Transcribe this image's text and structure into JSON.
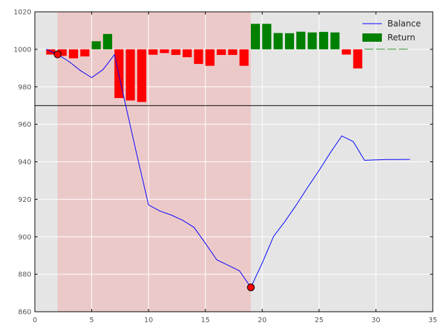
{
  "chart_data": {
    "type": "bar+line",
    "title": "",
    "xlabel": "",
    "ylabel": "",
    "xlim": [
      0,
      35
    ],
    "ylim": [
      860,
      1020
    ],
    "xticks": [
      0,
      5,
      10,
      15,
      20,
      25,
      30,
      35
    ],
    "yticks": [
      860,
      880,
      900,
      920,
      940,
      960,
      980,
      1000,
      1020
    ],
    "grid": true,
    "legend_position": "top-right",
    "background_color": "#e5e5e5",
    "drawdown_span": {
      "x_start": 2,
      "x_end": 19,
      "color": "#f4a6a6"
    },
    "reference_line": {
      "y": 970,
      "color": "#000000"
    },
    "line_series": {
      "name": "Balance",
      "color": "#0000ff",
      "x": [
        1,
        2,
        3,
        4,
        5,
        6,
        7,
        8,
        9,
        10,
        11,
        12,
        13,
        14,
        15,
        16,
        17,
        18,
        19,
        20,
        21,
        22,
        23,
        24,
        25,
        26,
        27,
        28,
        29,
        30,
        31,
        32,
        33
      ],
      "values": [
        1000,
        997.3,
        993.5,
        988.7,
        984.9,
        989.2,
        997.1,
        969.8,
        943.0,
        917.0,
        913.7,
        911.6,
        908.8,
        905.0,
        896.5,
        887.7,
        884.8,
        881.8,
        873.0,
        886.0,
        900.2,
        908.2,
        917.0,
        926.4,
        935.4,
        944.9,
        953.8,
        950.8,
        940.8,
        941.0,
        941.2,
        941.2,
        941.3
      ]
    },
    "bar_series": {
      "name": "Return",
      "positive_color": "#008000",
      "negative_color": "#ff0000",
      "baseline": 1000,
      "x": [
        1,
        2,
        3,
        4,
        5,
        6,
        7,
        8,
        9,
        10,
        11,
        12,
        13,
        14,
        15,
        16,
        17,
        18,
        19,
        20,
        21,
        22,
        23,
        24,
        25,
        26,
        27,
        28,
        29,
        30,
        31,
        32
      ],
      "values": [
        -2.8,
        -3.5,
        -4.8,
        -3.8,
        4.3,
        8.2,
        -26.0,
        -27.3,
        -28.1,
        -2.9,
        -2.0,
        -3.0,
        -4.2,
        -7.8,
        -8.8,
        -3.0,
        -3.0,
        -8.8,
        13.6,
        13.6,
        8.7,
        8.6,
        9.4,
        9.0,
        9.3,
        9.0,
        -2.8,
        -10.2,
        0.2,
        0.2,
        0.2,
        0.2
      ]
    },
    "markers": {
      "color": "#ff0000",
      "points": [
        {
          "x": 2,
          "y": 997.3
        },
        {
          "x": 19,
          "y": 873.0
        }
      ]
    },
    "legend": [
      "Balance",
      "Return"
    ]
  }
}
